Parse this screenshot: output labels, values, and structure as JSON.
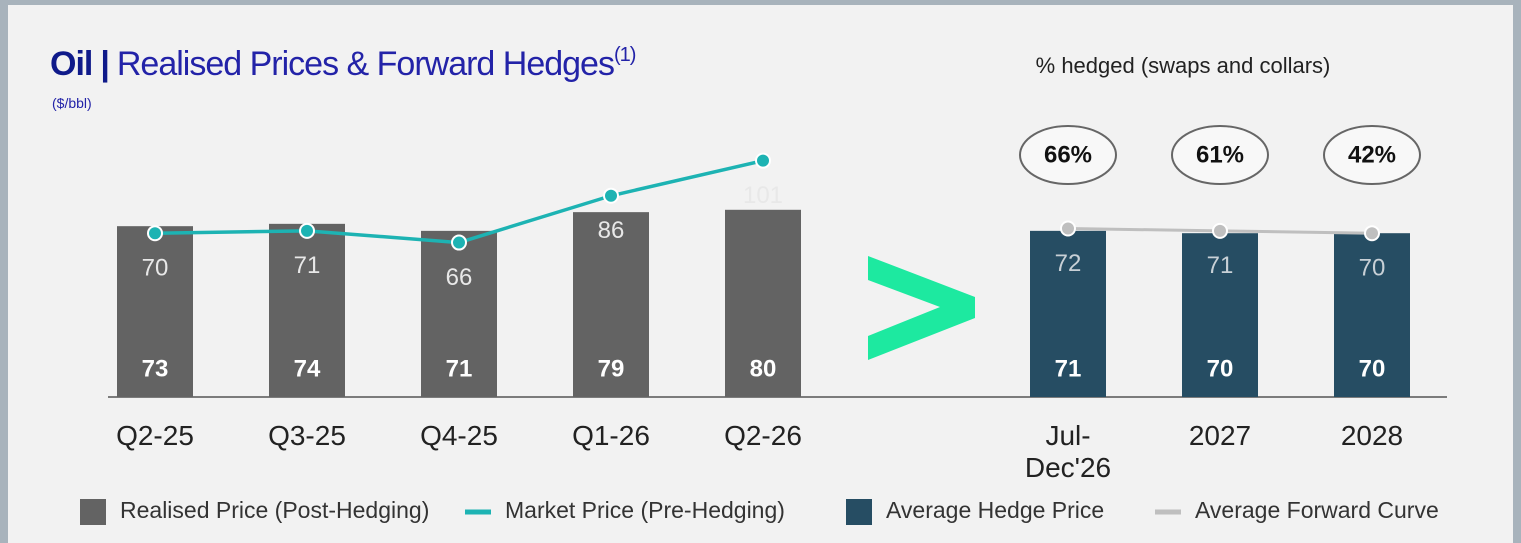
{
  "chart_data": [
    {
      "type": "combo",
      "title": "Oil",
      "separator": "|",
      "subtitle": "Realised Prices & Forward Hedges",
      "footnote_ref": "(1)",
      "unit_label": "($/bbl)",
      "categories": [
        "Q2-25",
        "Q3-25",
        "Q4-25",
        "Q1-26",
        "Q2-26"
      ],
      "ylim": [
        0,
        140
      ],
      "series": [
        {
          "name": "Realised Price (Post-Hedging)",
          "type": "bar",
          "color": "#636363",
          "values": [
            73,
            74,
            71,
            79,
            80
          ]
        },
        {
          "name": "Market Price (Pre-Hedging)",
          "type": "line",
          "color": "#1db3b3",
          "values": [
            70,
            71,
            66,
            86,
            101
          ]
        }
      ]
    },
    {
      "type": "combo",
      "title": "% hedged (swaps and collars)",
      "categories": [
        "Jul-Dec'26",
        "2027",
        "2028"
      ],
      "ylim": [
        0,
        140
      ],
      "hedged": {
        "values": [
          66,
          61,
          42
        ],
        "value_labels": [
          "66%",
          "61%",
          "42%"
        ]
      },
      "series": [
        {
          "name": "Average Hedge Price",
          "type": "bar",
          "color": "#264d63",
          "values": [
            71,
            70,
            70
          ]
        },
        {
          "name": "Average Forward Curve",
          "type": "line",
          "color": "#bfbfbf",
          "values": [
            72,
            71,
            70
          ]
        }
      ]
    }
  ]
}
